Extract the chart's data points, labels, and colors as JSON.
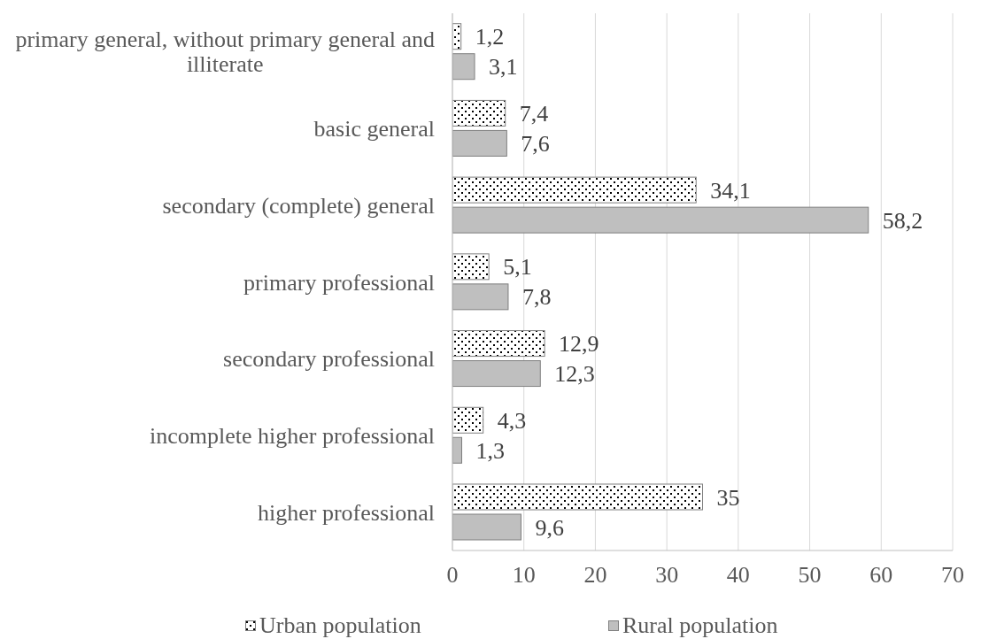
{
  "chart_data": {
    "type": "bar",
    "orientation": "horizontal",
    "categories": [
      "primary general, without primary general and illiterate",
      "basic general",
      "secondary (complete) general",
      "primary professional",
      "secondary professional",
      "incomplete higher professional",
      "higher professional"
    ],
    "series": [
      {
        "name": "Urban population",
        "color": "#ffffff",
        "values": [
          1.2,
          7.4,
          34.1,
          5.1,
          12.9,
          4.3,
          35
        ],
        "value_labels": [
          "1,2",
          "7,4",
          "34,1",
          "5,1",
          "12,9",
          "4,3",
          "35"
        ]
      },
      {
        "name": "Rural population",
        "color": "#bfbfbf",
        "values": [
          3.1,
          7.6,
          58.2,
          7.8,
          12.3,
          1.3,
          9.6
        ],
        "value_labels": [
          "3,1",
          "7,6",
          "58,2",
          "7,8",
          "12,3",
          "1,3",
          "9,6"
        ]
      }
    ],
    "xlim": [
      0,
      70
    ],
    "xticks": [
      0,
      10,
      20,
      30,
      40,
      50,
      60,
      70
    ],
    "grid": "x",
    "legend": "bottom"
  }
}
